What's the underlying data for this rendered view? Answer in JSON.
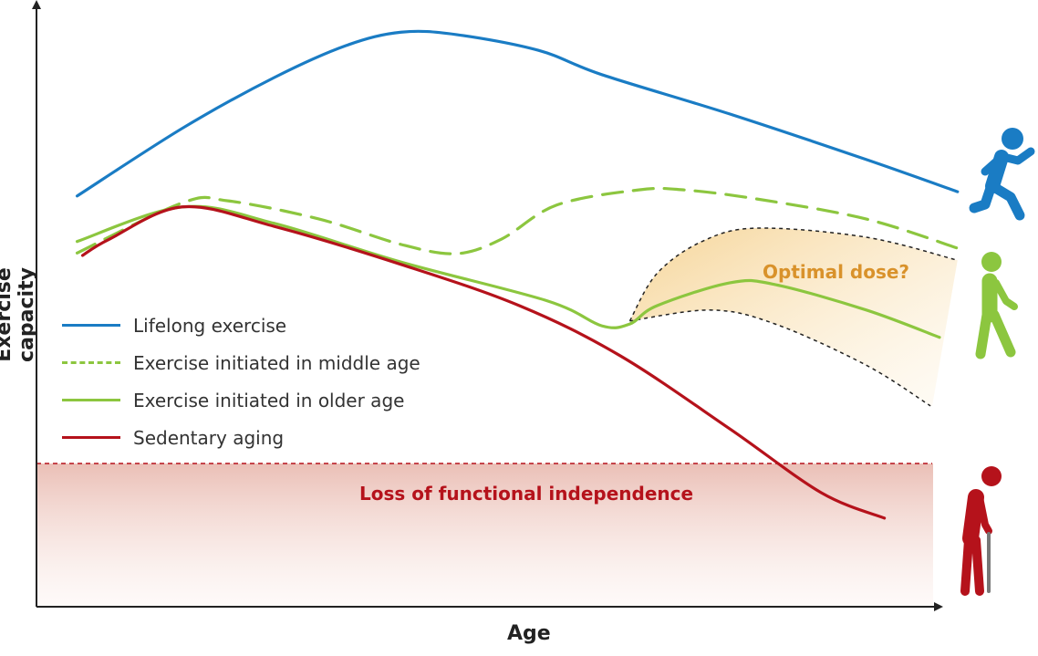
{
  "chart_data": {
    "type": "line",
    "title": "",
    "xlabel": "Age",
    "ylabel": "Exercise capacity",
    "xlim": [
      0,
      100
    ],
    "ylim": [
      0,
      100
    ],
    "grid": false,
    "legend_position": "left-middle",
    "series": [
      {
        "name": "Lifelong exercise",
        "color": "#1a7cc4",
        "style": "solid",
        "x": [
          4.5,
          16.2,
          26.3,
          34.3,
          40.4,
          46.5,
          55.6,
          62.6,
          76.8,
          91.9,
          102
        ],
        "y": [
          67.7,
          78.9,
          87.2,
          92.5,
          94.7,
          94.3,
          91.7,
          87.7,
          81.2,
          73.7,
          68.4
        ]
      },
      {
        "name": "Exercise initiated in middle age",
        "color": "#8cc63f",
        "style": "dashed",
        "x": [
          4.5,
          16.2,
          21.2,
          31.3,
          40.4,
          46.5,
          51.5,
          57.6,
          66.7,
          71.7,
          79.8,
          91.9,
          102
        ],
        "y": [
          58.3,
          66.6,
          66.9,
          63.9,
          59.7,
          58.2,
          60.6,
          66.2,
          68.7,
          68.7,
          67.2,
          63.9,
          59.1
        ]
      },
      {
        "name": "Exercise initiated in older age",
        "color": "#8cc63f",
        "style": "solid",
        "x": [
          4.5,
          16.2,
          26.3,
          40.4,
          56.6,
          62.6,
          65.7,
          68.7,
          76.8,
          81.8,
          91.9,
          100
        ],
        "y": [
          60.2,
          65.9,
          63.2,
          56.8,
          50.4,
          46.3,
          46.6,
          49.6,
          53.4,
          53.1,
          48.9,
          44.4
        ]
      },
      {
        "name": "Sedentary aging",
        "color": "#b5121b",
        "style": "solid",
        "x": [
          5.1,
          8.1,
          16.2,
          26.3,
          40.4,
          53.5,
          64.6,
          76.8,
          86.9,
          93.9
        ],
        "y": [
          57.9,
          60.6,
          65.9,
          62.7,
          56.4,
          49.6,
          41.4,
          29.3,
          18.8,
          14.6
        ]
      }
    ],
    "band": {
      "label": "Optimal dose?",
      "color": "#e8a33d",
      "upper": {
        "x": [
          65.7,
          68.7,
          73.7,
          79.8,
          91.9,
          102
        ],
        "y": [
          47.1,
          54.9,
          60.2,
          62.4,
          60.9,
          57.1
        ]
      },
      "lower": {
        "x": [
          65.7,
          74.7,
          81.8,
          91.9,
          99.0
        ],
        "y": [
          47.1,
          48.9,
          46.6,
          39.8,
          33.1
        ]
      }
    },
    "threshold": {
      "label": "Loss of functional independence",
      "y": 23.6,
      "color": "#b5121b"
    },
    "icons": [
      "running-person-icon",
      "walking-person-icon",
      "elderly-person-with-cane-icon"
    ]
  }
}
